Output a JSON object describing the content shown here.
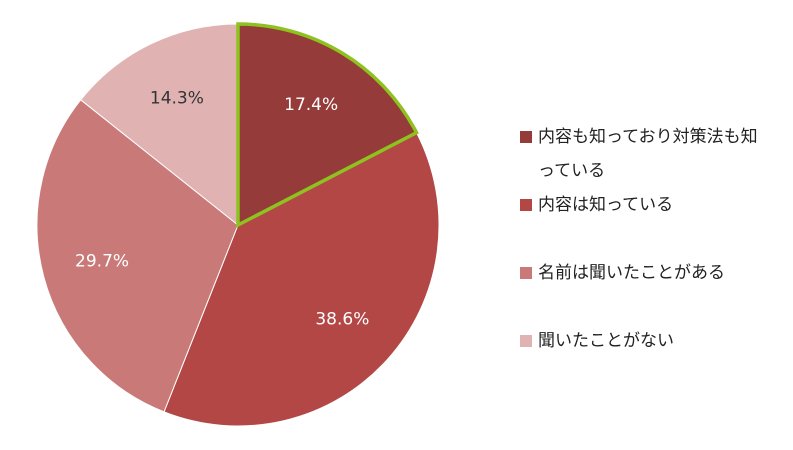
{
  "chart_data": {
    "type": "pie",
    "categories": [
      "内容も知っており対策法も知っている",
      "内容は知っている",
      "名前は聞いたことがある",
      "聞いたことがない"
    ],
    "values": [
      17.4,
      38.6,
      29.7,
      14.3
    ],
    "value_labels": [
      "17.4%",
      "38.6%",
      "29.7%",
      "14.3%"
    ],
    "colors": [
      "#953b39",
      "#b24745",
      "#c97a78",
      "#e0b3b2"
    ],
    "highlight_index": 0,
    "highlight_color": "#8dc21f",
    "legend": "right"
  }
}
